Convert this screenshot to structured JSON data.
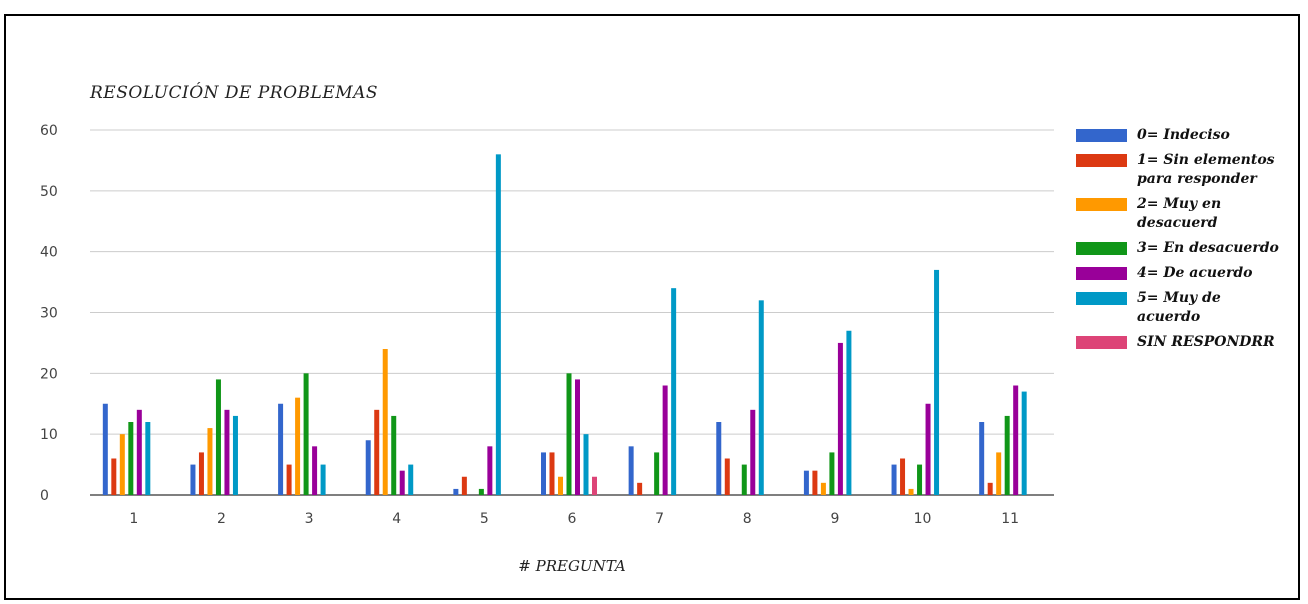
{
  "chart_data": {
    "type": "bar",
    "title": "RESOLUCIÓN DE PROBLEMAS",
    "xlabel": "# PREGUNTA",
    "ylabel": "",
    "ylim": [
      0,
      60
    ],
    "yticks": [
      "0",
      "10",
      "20",
      "30",
      "40",
      "50",
      "60"
    ],
    "categories": [
      "1",
      "2",
      "3",
      "4",
      "5",
      "6",
      "7",
      "8",
      "9",
      "10",
      "11"
    ],
    "grid": true,
    "legend_position": "right",
    "series": [
      {
        "name": "0= Indeciso",
        "color": "#3366cc",
        "values": [
          15,
          5,
          15,
          9,
          1,
          7,
          8,
          12,
          4,
          5,
          12
        ]
      },
      {
        "name": "1= Sin elementos para responder",
        "color": "#dc3912",
        "values": [
          6,
          7,
          5,
          14,
          3,
          7,
          2,
          6,
          4,
          6,
          2
        ]
      },
      {
        "name": "2= Muy en desacuerd",
        "color": "#ff9900",
        "values": [
          10,
          11,
          16,
          24,
          0,
          3,
          0,
          0,
          2,
          1,
          7
        ]
      },
      {
        "name": "3= En desacuerdo",
        "color": "#109618",
        "values": [
          12,
          19,
          20,
          13,
          1,
          20,
          7,
          5,
          7,
          5,
          13
        ]
      },
      {
        "name": "4= De acuerdo",
        "color": "#990099",
        "values": [
          14,
          14,
          8,
          4,
          8,
          19,
          18,
          14,
          25,
          15,
          18
        ]
      },
      {
        "name": "5= Muy de acuerdo",
        "color": "#0099c6",
        "values": [
          12,
          13,
          5,
          5,
          56,
          10,
          34,
          32,
          27,
          37,
          17
        ]
      },
      {
        "name": "SIN RESPONDRR",
        "color": "#dd4477",
        "values": [
          0,
          0,
          0,
          0,
          0,
          3,
          0,
          0,
          0,
          0,
          0
        ]
      }
    ]
  }
}
